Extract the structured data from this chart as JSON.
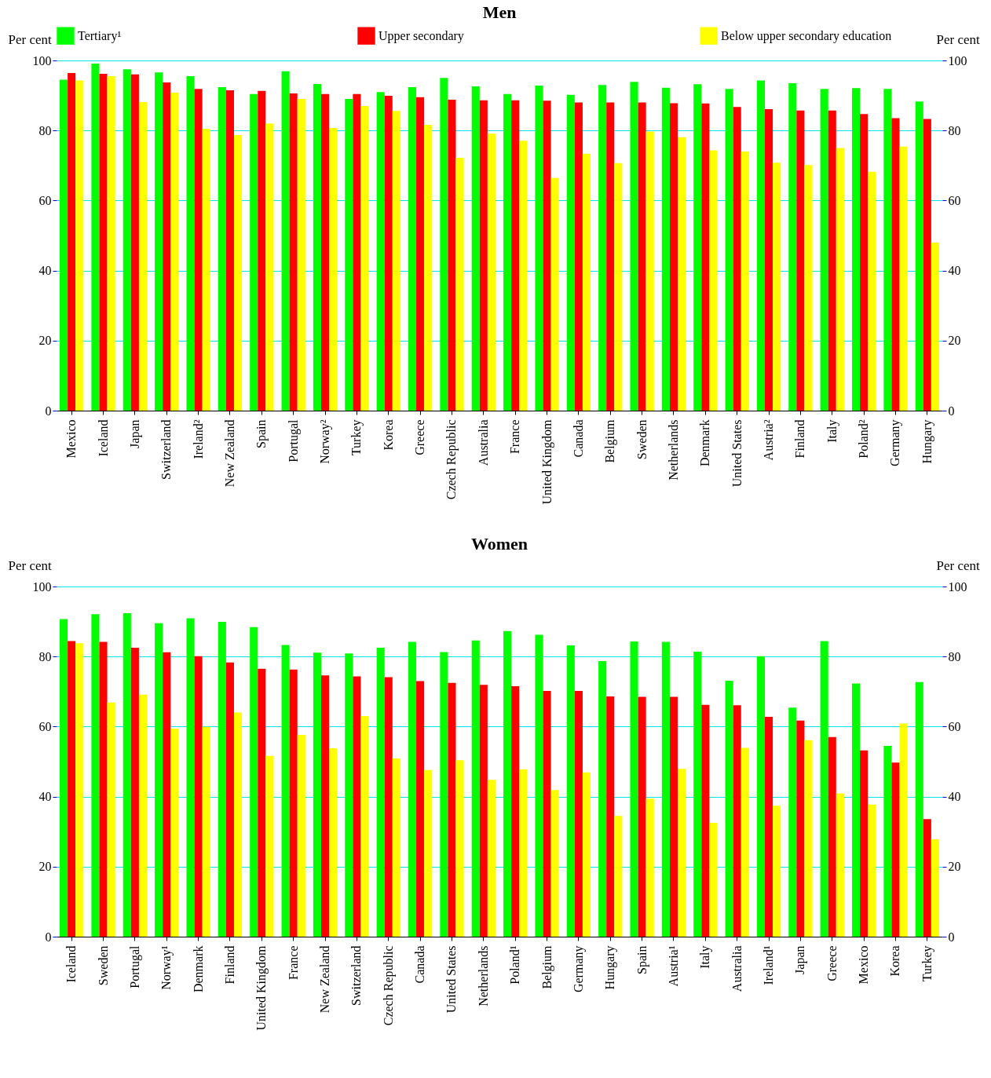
{
  "chart_data": [
    {
      "type": "bar",
      "title": "Men",
      "ylabel": "Per cent",
      "y2label": "Per cent",
      "categories": [
        "Mexico",
        "Iceland",
        "Japan",
        "Switzerland",
        "Ireland²",
        "New Zealand",
        "Spain",
        "Portugal",
        "Norway²",
        "Turkey",
        "Korea",
        "Greece",
        "Czech Republic",
        "Australia",
        "France",
        "United Kingdom",
        "Canada",
        "Belgium",
        "Sweden",
        "Netherlands",
        "Denmark",
        "United States",
        "Austria²",
        "Finland",
        "Italy",
        "Poland²",
        "Germany",
        "Hungary"
      ],
      "series": [
        {
          "name": "Tertiary¹",
          "color": "#00ff00",
          "values": [
            94.5,
            99.1,
            97.5,
            96.6,
            95.5,
            92.4,
            90.4,
            96.9,
            93.3,
            89.0,
            91.0,
            92.4,
            95.0,
            92.6,
            90.4,
            92.8,
            90.2,
            93.0,
            93.9,
            92.2,
            93.2,
            91.9,
            94.3,
            93.5,
            91.9,
            92.1,
            91.9,
            88.3
          ]
        },
        {
          "name": "Upper secondary",
          "color": "#ff0000",
          "values": [
            96.4,
            96.2,
            96.0,
            93.7,
            91.9,
            91.5,
            91.3,
            90.6,
            90.4,
            90.4,
            89.9,
            89.5,
            88.8,
            88.6,
            88.6,
            88.5,
            88.0,
            88.0,
            88.0,
            87.8,
            87.7,
            86.7,
            86.1,
            85.7,
            85.7,
            84.7,
            83.5,
            83.3
          ]
        },
        {
          "name": "Below upper secondary education",
          "color": "#ffff00",
          "values": [
            94.3,
            95.5,
            88.1,
            90.8,
            80.5,
            78.7,
            82.0,
            89.0,
            80.7,
            87.0,
            85.6,
            81.6,
            72.2,
            79.1,
            77.1,
            66.4,
            73.4,
            70.7,
            79.7,
            78.1,
            74.3,
            74.0,
            70.8,
            70.1,
            75.0,
            68.2,
            75.4,
            48.0
          ]
        }
      ],
      "ylim": [
        0,
        100
      ],
      "yticks": [
        0,
        20,
        40,
        60,
        80,
        100
      ],
      "y2lim": [
        0,
        100
      ],
      "y2ticks": [
        0,
        20,
        40,
        60,
        80,
        100
      ],
      "grid": "y",
      "legend": "top"
    },
    {
      "type": "bar",
      "title": "Women",
      "ylabel": "Per cent",
      "y2label": "Per cent",
      "categories": [
        "Iceland",
        "Sweden",
        "Portugal",
        "Norway¹",
        "Denmark",
        "Finland",
        "United Kingdom",
        "France",
        "New Zealand",
        "Switzerland",
        "Czech Republic",
        "Canada",
        "United States",
        "Netherlands",
        "Poland¹",
        "Belgium",
        "Germany",
        "Hungary",
        "Spain",
        "Austria¹",
        "Italy",
        "Australia",
        "Ireland¹",
        "Japan",
        "Greece",
        "Mexico",
        "Korea",
        "Turkey"
      ],
      "series": [
        {
          "color": "#00ff00",
          "values": [
            90.7,
            92.1,
            92.4,
            89.5,
            90.9,
            89.9,
            88.4,
            83.3,
            81.1,
            80.9,
            82.5,
            84.2,
            81.3,
            84.6,
            87.3,
            86.2,
            83.2,
            78.7,
            84.3,
            84.2,
            81.4,
            73.1,
            80.1,
            65.4,
            84.4,
            72.3,
            54.5,
            72.7
          ]
        },
        {
          "color": "#ff0000",
          "values": [
            84.4,
            84.2,
            82.5,
            81.2,
            80.1,
            78.3,
            76.5,
            76.3,
            74.6,
            74.3,
            74.1,
            73.0,
            72.5,
            71.9,
            71.5,
            70.2,
            70.2,
            68.6,
            68.5,
            68.5,
            66.2,
            66.1,
            62.8,
            61.7,
            57.0,
            53.2,
            49.7,
            33.6
          ]
        },
        {
          "color": "#ffff00",
          "values": [
            83.8,
            66.9,
            69.1,
            59.4,
            59.9,
            64.0,
            51.6,
            57.6,
            53.8,
            63.0,
            50.9,
            47.6,
            50.4,
            44.8,
            47.8,
            41.9,
            46.9,
            34.5,
            39.4,
            47.9,
            32.5,
            53.9,
            37.4,
            56.1,
            40.9,
            37.7,
            60.9,
            27.8
          ]
        }
      ],
      "ylim": [
        0,
        100
      ],
      "yticks": [
        0,
        20,
        40,
        60,
        80,
        100
      ],
      "y2lim": [
        0,
        100
      ],
      "y2ticks": [
        0,
        20,
        40,
        60,
        80,
        100
      ],
      "grid": "y"
    }
  ]
}
